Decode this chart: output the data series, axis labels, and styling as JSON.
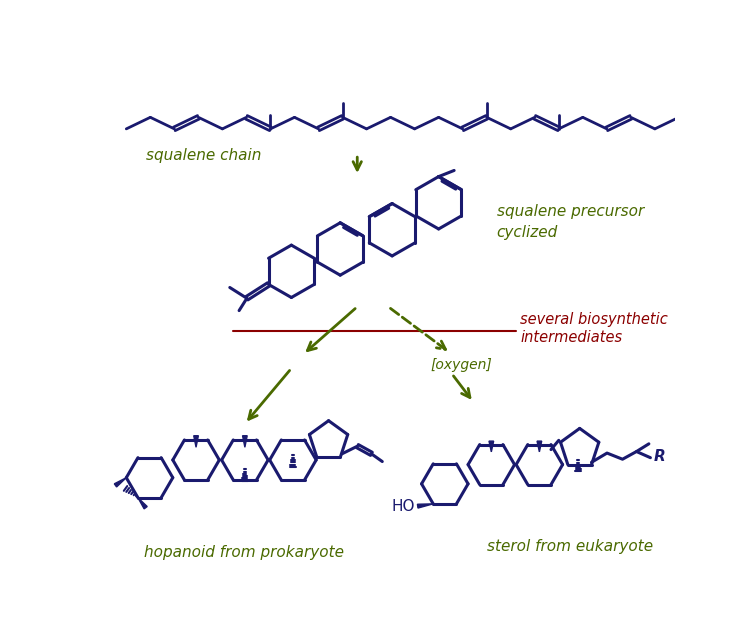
{
  "mol_color": "#1a1a6e",
  "arrow_color": "#4a6a00",
  "red_line_color": "#8b0000",
  "label_color": "#4a6a00",
  "biosynthetic_color": "#8b0000",
  "bg_color": "#ffffff",
  "text_squalene_chain": "squalene chain",
  "text_precursor": "squalene precursor\ncyclized",
  "text_biosynthetic": "several biosynthetic\nintermediates",
  "text_oxygen": "[oxygen]",
  "text_hopanoid": "hopanoid from prokaryote",
  "text_sterol": "sterol from eukaryote",
  "text_OH": "HO",
  "text_R": "R",
  "figsize": [
    7.5,
    6.44
  ],
  "dpi": 100
}
